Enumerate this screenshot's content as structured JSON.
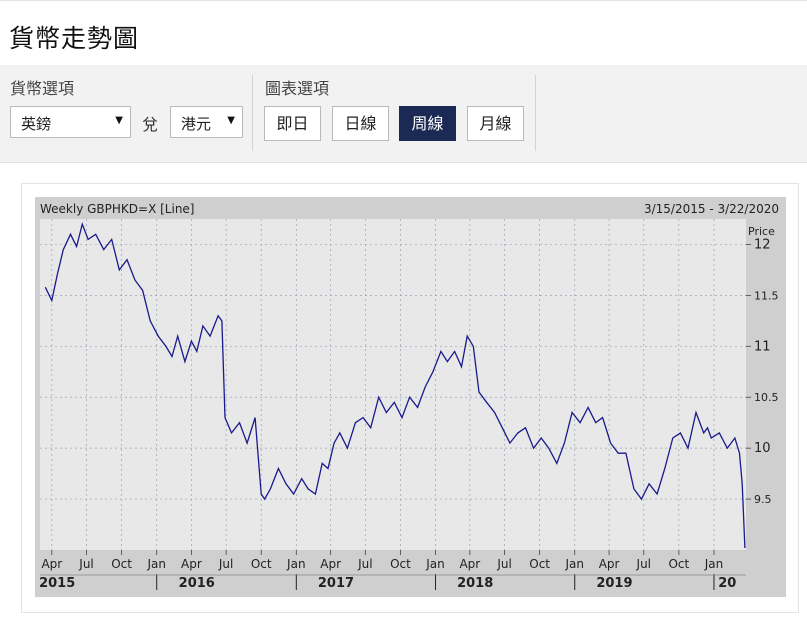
{
  "page_title": "貨幣走勢圖",
  "currency_options": {
    "label": "貨幣選項",
    "from_currency": "英鎊",
    "vs_label": "兌",
    "to_currency": "港元"
  },
  "chart_options": {
    "label": "圖表選項",
    "buttons": [
      {
        "label": "即日",
        "active": false
      },
      {
        "label": "日線",
        "active": false
      },
      {
        "label": "周線",
        "active": true
      },
      {
        "label": "月線",
        "active": false
      }
    ]
  },
  "colors": {
    "active_button": "#1b2a55",
    "line": "#1a1a8c",
    "plot_bg": "#e8e8e8",
    "frame_bg": "#cfcfcf"
  },
  "chart_data": {
    "type": "line",
    "title": "Weekly GBPHKD=X [Line]",
    "date_range": "3/15/2015 - 3/22/2020",
    "ylabel": "Price",
    "ylim": [
      9.0,
      12.25
    ],
    "grid": true,
    "y_ticks": [
      12,
      11.5,
      11,
      10.5,
      10,
      9.5
    ],
    "y_tick_labels": [
      "12",
      "11.5",
      "11",
      "10.5",
      "10",
      "9.5"
    ],
    "month_ticks": [
      "Apr",
      "Jul",
      "Oct",
      "Jan",
      "Apr",
      "Jul",
      "Oct",
      "Jan",
      "Apr",
      "Jul",
      "Oct",
      "Jan",
      "Apr",
      "Jul",
      "Oct",
      "Jan",
      "Apr",
      "Jul",
      "Oct",
      "Jan"
    ],
    "year_labels": [
      "2015",
      "2016",
      "2017",
      "2018",
      "2019",
      "20"
    ],
    "series": [
      {
        "x": [
          "2015-03-15",
          "2015-04-01",
          "2015-04-15",
          "2015-05-01",
          "2015-05-20",
          "2015-06-05",
          "2015-06-20",
          "2015-07-05",
          "2015-07-25",
          "2015-08-15",
          "2015-09-05",
          "2015-09-25",
          "2015-10-15",
          "2015-11-05",
          "2015-11-25",
          "2015-12-15",
          "2016-01-05",
          "2016-01-25",
          "2016-02-10",
          "2016-02-25",
          "2016-03-15",
          "2016-04-01",
          "2016-04-15",
          "2016-05-01",
          "2016-05-20",
          "2016-06-10",
          "2016-06-20",
          "2016-06-28",
          "2016-07-15",
          "2016-08-05",
          "2016-08-25",
          "2016-09-15",
          "2016-10-01",
          "2016-10-10",
          "2016-10-25",
          "2016-11-15",
          "2016-12-05",
          "2016-12-25",
          "2017-01-15",
          "2017-02-01",
          "2017-02-20",
          "2017-03-10",
          "2017-03-25",
          "2017-04-10",
          "2017-04-25",
          "2017-05-15",
          "2017-06-05",
          "2017-06-25",
          "2017-07-15",
          "2017-08-05",
          "2017-08-25",
          "2017-09-15",
          "2017-10-05",
          "2017-10-25",
          "2017-11-15",
          "2017-12-05",
          "2017-12-25",
          "2018-01-15",
          "2018-02-01",
          "2018-02-20",
          "2018-03-10",
          "2018-03-25",
          "2018-04-10",
          "2018-04-25",
          "2018-05-15",
          "2018-06-05",
          "2018-06-25",
          "2018-07-15",
          "2018-08-05",
          "2018-08-25",
          "2018-09-15",
          "2018-10-05",
          "2018-10-25",
          "2018-11-15",
          "2018-12-05",
          "2018-12-25",
          "2019-01-15",
          "2019-02-05",
          "2019-02-25",
          "2019-03-15",
          "2019-04-05",
          "2019-04-25",
          "2019-05-15",
          "2019-06-05",
          "2019-06-25",
          "2019-07-15",
          "2019-08-05",
          "2019-08-25",
          "2019-09-15",
          "2019-10-05",
          "2019-10-25",
          "2019-11-15",
          "2019-12-05",
          "2019-12-15",
          "2019-12-25",
          "2020-01-15",
          "2020-02-05",
          "2020-02-25",
          "2020-03-08",
          "2020-03-15",
          "2020-03-22"
        ],
        "y": [
          11.58,
          11.45,
          11.7,
          11.95,
          12.1,
          11.98,
          12.2,
          12.05,
          12.1,
          11.95,
          12.05,
          11.75,
          11.85,
          11.65,
          11.55,
          11.25,
          11.1,
          11.0,
          10.9,
          11.1,
          10.85,
          11.05,
          10.95,
          11.2,
          11.1,
          11.3,
          11.25,
          10.3,
          10.15,
          10.25,
          10.05,
          10.3,
          9.55,
          9.5,
          9.6,
          9.8,
          9.65,
          9.55,
          9.7,
          9.6,
          9.55,
          9.85,
          9.8,
          10.05,
          10.15,
          10.0,
          10.25,
          10.3,
          10.2,
          10.5,
          10.35,
          10.45,
          10.3,
          10.5,
          10.4,
          10.6,
          10.75,
          10.95,
          10.85,
          10.95,
          10.8,
          11.1,
          11.0,
          10.55,
          10.45,
          10.35,
          10.2,
          10.05,
          10.15,
          10.2,
          10.0,
          10.1,
          10.0,
          9.85,
          10.05,
          10.35,
          10.25,
          10.4,
          10.25,
          10.3,
          10.05,
          9.95,
          9.95,
          9.6,
          9.5,
          9.65,
          9.55,
          9.8,
          10.1,
          10.15,
          10.0,
          10.35,
          10.15,
          10.2,
          10.1,
          10.15,
          10.0,
          10.1,
          9.95,
          9.65,
          9.02
        ]
      }
    ]
  }
}
